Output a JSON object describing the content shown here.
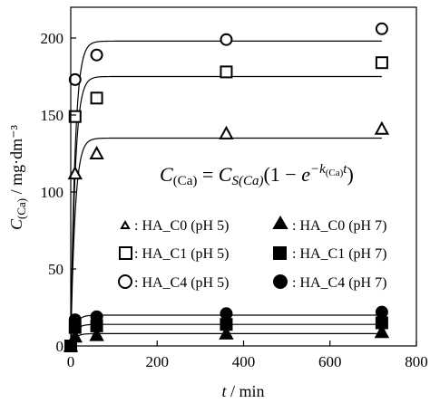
{
  "chart_data": {
    "type": "scatter",
    "xlabel": "t / min",
    "ylabel": "C(Ca) / mg·dm⁻³",
    "xlim": [
      0,
      800
    ],
    "ylim": [
      0,
      220
    ],
    "xticks": [
      0,
      200,
      400,
      600,
      800
    ],
    "yticks": [
      0,
      50,
      100,
      150,
      200
    ],
    "grid": false,
    "legend_position": "bottom-right",
    "annotation": "C(Ca) = CS(Ca)(1 − e^(−k(Ca)t))",
    "series": [
      {
        "name": "HA_C0 (pH 5)",
        "marker": "triangle",
        "filled": false,
        "x": [
          0,
          10,
          60,
          360,
          720
        ],
        "y": [
          0,
          112,
          125,
          138,
          141
        ],
        "fit_plateau": 135
      },
      {
        "name": "HA_C1 (pH 5)",
        "marker": "square",
        "filled": false,
        "x": [
          0,
          10,
          60,
          360,
          720
        ],
        "y": [
          0,
          149,
          161,
          178,
          184
        ],
        "fit_plateau": 175
      },
      {
        "name": "HA_C4 (pH 5)",
        "marker": "circle",
        "filled": false,
        "x": [
          0,
          10,
          60,
          360,
          720
        ],
        "y": [
          0,
          173,
          189,
          199,
          206
        ],
        "fit_plateau": 198
      },
      {
        "name": "HA_C0 (pH 7)",
        "marker": "triangle",
        "filled": true,
        "x": [
          0,
          10,
          60,
          360,
          720
        ],
        "y": [
          0,
          6,
          7,
          8,
          9
        ],
        "fit_plateau": 8
      },
      {
        "name": "HA_C1 (pH 7)",
        "marker": "square",
        "filled": true,
        "x": [
          0,
          10,
          60,
          360,
          720
        ],
        "y": [
          0,
          12,
          13,
          14,
          15
        ],
        "fit_plateau": 14
      },
      {
        "name": "HA_C4 (pH 7)",
        "marker": "circle",
        "filled": true,
        "x": [
          0,
          10,
          60,
          360,
          720
        ],
        "y": [
          0,
          17,
          19,
          21,
          22
        ],
        "fit_plateau": 20
      }
    ]
  },
  "labels": {
    "xlabel_italic": "t",
    "xlabel_rest": " / min",
    "ylabel_italic": "C",
    "ylabel_sub": "(Ca)",
    "ylabel_rest": " / mg·dm⁻³",
    "eq_lhs_c": "C",
    "eq_lhs_sub": "(Ca)",
    "eq_equals": " = ",
    "eq_rhs_c": "C",
    "eq_rhs_sub": "S(Ca)",
    "eq_paren_open": "(1 − ",
    "eq_e": "e",
    "eq_exp": "−k",
    "eq_exp_sub": "(Ca)",
    "eq_exp_t": "t",
    "eq_paren_close": ")"
  },
  "legend": [
    {
      "label": ": HA_C0 (pH 5)"
    },
    {
      "label": ": HA_C0 (pH 7)"
    },
    {
      "label": ": HA_C1 (pH 5)"
    },
    {
      "label": ": HA_C1 (pH 7)"
    },
    {
      "label": ": HA_C4 (pH 5)"
    },
    {
      "label": ": HA_C4 (pH 7)"
    }
  ]
}
